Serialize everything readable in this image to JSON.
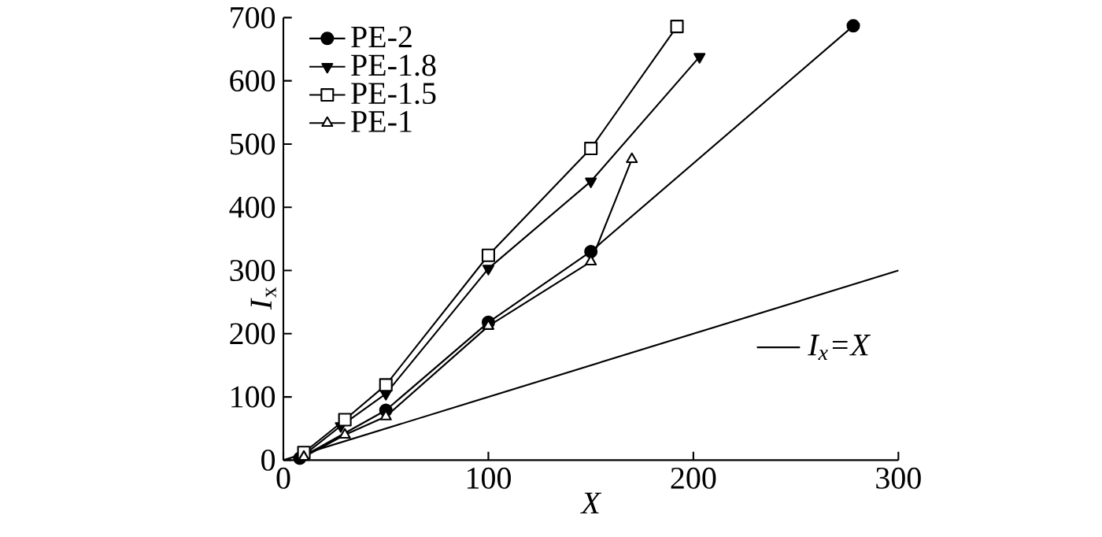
{
  "chart_data": {
    "type": "line",
    "xlabel": "*X*",
    "ylabel": "*I*$_{x}$",
    "xlim": [
      0,
      300
    ],
    "ylim": [
      0,
      700
    ],
    "xticks": [
      0,
      100,
      200,
      300
    ],
    "yticks": [
      0,
      100,
      200,
      300,
      400,
      500,
      600,
      700
    ],
    "grid": false,
    "legend": "top left",
    "line_style": "solid",
    "series": [
      {
        "name": "PE-2",
        "color": "#000000",
        "marker": "circle",
        "x": [
          8,
          50,
          100,
          150,
          278
        ],
        "values": [
          3,
          79,
          218,
          330,
          687
        ]
      },
      {
        "name": "PE-1.8",
        "color": "#000000",
        "marker": "triangle-down",
        "x": [
          10,
          28,
          50,
          100,
          150,
          203
        ],
        "values": [
          8,
          54,
          105,
          303,
          441,
          638
        ]
      },
      {
        "name": "PE-1.5",
        "color": "#000000",
        "marker": "square",
        "x": [
          10,
          30,
          50,
          100,
          150,
          192
        ],
        "values": [
          12,
          64,
          119,
          324,
          493,
          686
        ]
      },
      {
        "name": "PE-1",
        "color": "#000000",
        "marker": "triangle",
        "x": [
          10,
          30,
          50,
          100,
          150,
          170
        ],
        "values": [
          5,
          40,
          69,
          212,
          314,
          476
        ]
      },
      {
        "name": "*I*$_{x}$=*X*",
        "color": "#000000",
        "marker": "none",
        "x": [
          0,
          300
        ],
        "values": [
          0,
          300
        ]
      }
    ]
  }
}
